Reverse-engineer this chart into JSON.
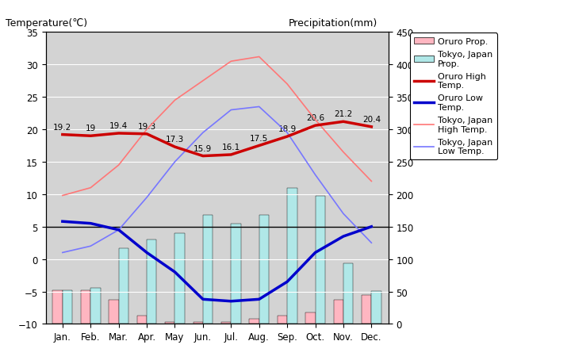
{
  "months": [
    "Jan.",
    "Feb.",
    "Mar.",
    "Apr.",
    "May",
    "Jun.",
    "Jul.",
    "Aug.",
    "Sep.",
    "Oct.",
    "Nov.",
    "Dec."
  ],
  "oruro_high": [
    19.2,
    19.0,
    19.4,
    19.3,
    17.3,
    15.9,
    16.1,
    17.5,
    18.9,
    20.6,
    21.2,
    20.4
  ],
  "oruro_low": [
    5.8,
    5.5,
    4.5,
    1.0,
    -2.0,
    -6.2,
    -6.5,
    -6.2,
    -3.5,
    1.0,
    3.5,
    5.0
  ],
  "tokyo_high": [
    9.8,
    11.0,
    14.5,
    20.0,
    24.5,
    27.5,
    30.5,
    31.2,
    27.0,
    21.5,
    16.5,
    12.0
  ],
  "tokyo_low": [
    1.0,
    2.0,
    4.5,
    9.5,
    15.0,
    19.5,
    23.0,
    23.5,
    19.5,
    13.0,
    7.0,
    2.5
  ],
  "oruro_precip_mm": [
    52,
    52,
    37,
    13,
    3,
    3,
    3,
    8,
    13,
    18,
    37,
    45
  ],
  "tokyo_precip_mm": [
    52,
    56,
    117,
    130,
    140,
    168,
    154,
    168,
    210,
    197,
    93,
    51
  ],
  "oruro_high_labels": [
    "19.2",
    "19",
    "19.4",
    "19.3",
    "17.3",
    "15.9",
    "16.1",
    "17.5",
    "18.9",
    "20.6",
    "21.2",
    "20.4"
  ],
  "temp_ylim": [
    -10,
    35
  ],
  "temp_yticks": [
    -10,
    -5,
    0,
    5,
    10,
    15,
    20,
    25,
    30,
    35
  ],
  "precip_ylim": [
    0,
    450
  ],
  "precip_yticks": [
    0,
    50,
    100,
    150,
    200,
    250,
    300,
    350,
    400,
    450
  ],
  "bg_color": "#d3d3d3",
  "oruro_precip_color": "#ffb6c1",
  "tokyo_precip_color": "#b0e8e8",
  "oruro_high_color": "#cc0000",
  "oruro_low_color": "#0000cc",
  "tokyo_high_color": "#ff7777",
  "tokyo_low_color": "#7777ff",
  "title_left": "Temperature(℃)",
  "title_right": "Precipitation(mm)",
  "legend_labels": [
    "Oruro Prop.",
    "Tokyo, Japan\nProp.",
    "Oruro High\nTemp.",
    "Oruro Low\nTemp.",
    "Tokyo, Japan\nHigh Temp.",
    "Tokyo, Japan\nLow Temp."
  ]
}
